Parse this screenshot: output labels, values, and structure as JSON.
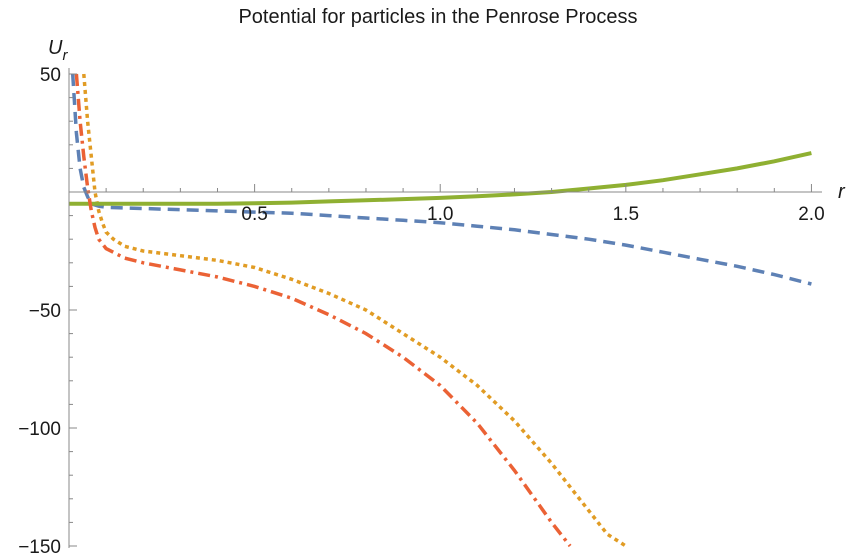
{
  "chart_data": {
    "type": "line",
    "title": "Potential for particles in the Penrose Process",
    "xlabel": "r",
    "ylabel": "U",
    "ylabel_sub": "r",
    "xlim": [
      0,
      2.05
    ],
    "ylim": [
      -150,
      50
    ],
    "grid": false,
    "legend": "none",
    "x_ticks": [
      0.5,
      1.0,
      1.5,
      2.0
    ],
    "x_tick_labels": [
      "0.5",
      "1.0",
      "1.5",
      "2.0"
    ],
    "y_ticks": [
      -150,
      -100,
      -50,
      50
    ],
    "y_tick_labels": [
      "−150",
      "−100",
      "−50",
      "50"
    ],
    "series": [
      {
        "color": "#5e81b5",
        "dash": "dashed",
        "points": [
          [
            0.01,
            50
          ],
          [
            0.02,
            25
          ],
          [
            0.03,
            10
          ],
          [
            0.04,
            2
          ],
          [
            0.05,
            -2
          ],
          [
            0.06,
            -5
          ],
          [
            0.08,
            -6
          ],
          [
            0.1,
            -6.5
          ],
          [
            0.2,
            -7
          ],
          [
            0.3,
            -7.5
          ],
          [
            0.4,
            -8
          ],
          [
            0.5,
            -8.5
          ],
          [
            0.6,
            -9
          ],
          [
            0.7,
            -10
          ],
          [
            0.8,
            -11
          ],
          [
            0.9,
            -12
          ],
          [
            1.0,
            -13
          ],
          [
            1.1,
            -14.5
          ],
          [
            1.2,
            -16
          ],
          [
            1.3,
            -18
          ],
          [
            1.4,
            -20
          ],
          [
            1.5,
            -22.5
          ],
          [
            1.6,
            -25.5
          ],
          [
            1.7,
            -28.5
          ],
          [
            1.8,
            -31.5
          ],
          [
            1.9,
            -35
          ],
          [
            2.0,
            -39
          ]
        ]
      },
      {
        "color": "#e19c24",
        "dash": "dotted",
        "points": [
          [
            0.04,
            50
          ],
          [
            0.05,
            30
          ],
          [
            0.06,
            15
          ],
          [
            0.07,
            0
          ],
          [
            0.08,
            -8
          ],
          [
            0.09,
            -13
          ],
          [
            0.1,
            -17
          ],
          [
            0.12,
            -20
          ],
          [
            0.15,
            -23
          ],
          [
            0.2,
            -25
          ],
          [
            0.3,
            -27
          ],
          [
            0.4,
            -29
          ],
          [
            0.5,
            -32
          ],
          [
            0.6,
            -37
          ],
          [
            0.7,
            -43
          ],
          [
            0.8,
            -50
          ],
          [
            0.9,
            -60
          ],
          [
            1.0,
            -70
          ],
          [
            1.1,
            -82
          ],
          [
            1.2,
            -97
          ],
          [
            1.3,
            -115
          ],
          [
            1.4,
            -135
          ],
          [
            1.45,
            -145
          ],
          [
            1.5,
            -150
          ]
        ]
      },
      {
        "color": "#8fb032",
        "dash": "solid",
        "points": [
          [
            0.0,
            -5
          ],
          [
            0.1,
            -5
          ],
          [
            0.2,
            -5
          ],
          [
            0.3,
            -5
          ],
          [
            0.4,
            -5
          ],
          [
            0.5,
            -4.8
          ],
          [
            0.6,
            -4.5
          ],
          [
            0.7,
            -4
          ],
          [
            0.8,
            -3.5
          ],
          [
            0.9,
            -3
          ],
          [
            1.0,
            -2.5
          ],
          [
            1.1,
            -1.8
          ],
          [
            1.2,
            -1
          ],
          [
            1.3,
            0
          ],
          [
            1.4,
            1.5
          ],
          [
            1.5,
            3
          ],
          [
            1.6,
            5
          ],
          [
            1.7,
            7.5
          ],
          [
            1.8,
            10
          ],
          [
            1.9,
            13
          ],
          [
            2.0,
            16.5
          ]
        ]
      },
      {
        "color": "#eb6235",
        "dash": "dashdot",
        "points": [
          [
            0.02,
            50
          ],
          [
            0.03,
            30
          ],
          [
            0.04,
            15
          ],
          [
            0.05,
            2
          ],
          [
            0.06,
            -8
          ],
          [
            0.07,
            -15
          ],
          [
            0.08,
            -20
          ],
          [
            0.1,
            -24
          ],
          [
            0.15,
            -28
          ],
          [
            0.2,
            -30
          ],
          [
            0.3,
            -33
          ],
          [
            0.4,
            -36
          ],
          [
            0.5,
            -40
          ],
          [
            0.6,
            -45
          ],
          [
            0.7,
            -52
          ],
          [
            0.8,
            -60
          ],
          [
            0.9,
            -70
          ],
          [
            1.0,
            -82
          ],
          [
            1.1,
            -98
          ],
          [
            1.2,
            -118
          ],
          [
            1.3,
            -140
          ],
          [
            1.35,
            -150
          ]
        ]
      }
    ]
  }
}
